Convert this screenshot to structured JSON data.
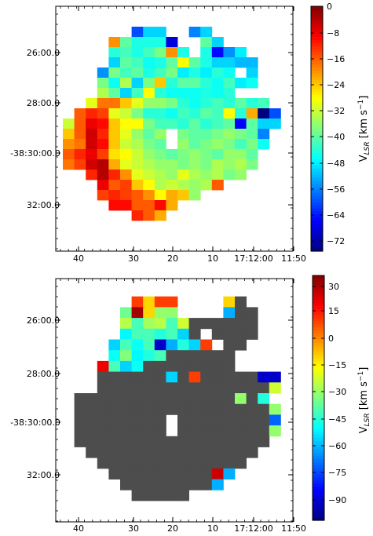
{
  "chart_data": [
    {
      "type": "heatmap",
      "title": "",
      "xlabel": "",
      "ylabel": "",
      "x_ticks": [
        "40",
        "30",
        "20",
        "10",
        "17:12:00",
        "11:50"
      ],
      "y_ticks": [
        "26:00.0",
        "28:00.0",
        "-38:30:00.0",
        "32:00.0"
      ],
      "colorbar": {
        "label": "V",
        "label_subscript": "LSR",
        "label_unit": " [km s",
        "label_exp": "−1",
        "label_close": "]",
        "ticks": [
          "0",
          "−8",
          "−16",
          "−24",
          "−32",
          "−40",
          "−48",
          "−56",
          "−64",
          "−72"
        ],
        "range": [
          -75,
          0
        ],
        "colormap": "jet"
      },
      "cells": [
        [
          null,
          null,
          null,
          null,
          null,
          null,
          null,
          null,
          null,
          null,
          null,
          null,
          null,
          null,
          null,
          null,
          null,
          null,
          null,
          null
        ],
        [
          null,
          null,
          null,
          null,
          null,
          null,
          -60,
          -50,
          -50,
          null,
          null,
          -56,
          -50,
          null,
          null,
          null,
          null,
          null,
          null,
          null
        ],
        [
          null,
          null,
          null,
          null,
          -20,
          -40,
          -45,
          -45,
          -45,
          -68,
          null,
          null,
          -40,
          -50,
          null,
          null,
          null,
          null,
          null,
          null
        ],
        [
          null,
          null,
          null,
          null,
          -44,
          -42,
          -45,
          -42,
          -38,
          -20,
          -45,
          null,
          -45,
          -65,
          -55,
          -48,
          null,
          null,
          null,
          null
        ],
        [
          null,
          null,
          null,
          null,
          -50,
          -40,
          -42,
          -46,
          -45,
          -40,
          -28,
          -40,
          -45,
          -50,
          -50,
          -52,
          -52,
          null,
          null,
          null
        ],
        [
          null,
          null,
          null,
          -55,
          -38,
          -42,
          -40,
          -45,
          -42,
          -38,
          -48,
          -45,
          -48,
          -44,
          -46,
          null,
          -50,
          null,
          null,
          null
        ],
        [
          null,
          null,
          null,
          -38,
          -46,
          -34,
          -50,
          -38,
          -24,
          -44,
          -40,
          -40,
          -44,
          -46,
          -42,
          -48,
          -46,
          null,
          null,
          null
        ],
        [
          null,
          null,
          null,
          -34,
          -40,
          -50,
          -42,
          -28,
          -44,
          -46,
          -46,
          -46,
          -45,
          -46,
          -44,
          null,
          null,
          null,
          null,
          null
        ],
        [
          null,
          null,
          -30,
          -18,
          -18,
          -24,
          -30,
          -36,
          -36,
          -38,
          -44,
          -46,
          -44,
          -42,
          -44,
          -40,
          -44,
          -42,
          null,
          null
        ],
        [
          null,
          -16,
          -12,
          -14,
          -30,
          -32,
          -38,
          -44,
          -44,
          -46,
          -42,
          -44,
          -40,
          -42,
          -28,
          -44,
          -22,
          -75,
          -60,
          null
        ],
        [
          -32,
          -16,
          -8,
          -10,
          -24,
          -28,
          -28,
          -38,
          -42,
          -42,
          -44,
          -40,
          -44,
          -42,
          -40,
          -66,
          -40,
          -50,
          -50,
          null
        ],
        [
          -24,
          -16,
          -6,
          -12,
          -24,
          -30,
          -36,
          -40,
          -36,
          null,
          -38,
          -40,
          -40,
          -38,
          -36,
          -38,
          -40,
          -56,
          null,
          null
        ],
        [
          -20,
          -18,
          -6,
          -10,
          -24,
          -32,
          -34,
          -38,
          -40,
          null,
          -36,
          -40,
          -38,
          -36,
          -38,
          -42,
          -38,
          -46,
          null,
          null
        ],
        [
          -16,
          -12,
          -8,
          -14,
          -26,
          -28,
          -32,
          -36,
          -38,
          -40,
          -38,
          -36,
          -38,
          -40,
          -36,
          -36,
          -40,
          null,
          null,
          null
        ],
        [
          -18,
          -14,
          -6,
          -4,
          -22,
          -30,
          -32,
          -34,
          -36,
          -36,
          -38,
          -36,
          -38,
          -34,
          -36,
          -34,
          -38,
          null,
          null,
          null
        ],
        [
          null,
          null,
          -12,
          -4,
          -12,
          -20,
          -30,
          -32,
          -34,
          -36,
          -30,
          -34,
          -36,
          -34,
          -38,
          -36,
          null,
          null,
          null,
          null
        ],
        [
          null,
          null,
          null,
          -8,
          -16,
          -14,
          -24,
          -28,
          -34,
          -32,
          -34,
          -36,
          -34,
          -16,
          null,
          null,
          null,
          null,
          null,
          null
        ],
        [
          null,
          null,
          null,
          -14,
          -12,
          -14,
          -16,
          -20,
          -28,
          -22,
          -24,
          -36,
          null,
          null,
          null,
          null,
          null,
          null,
          null,
          null
        ],
        [
          null,
          null,
          null,
          null,
          -10,
          -10,
          -16,
          -16,
          -10,
          -22,
          null,
          null,
          null,
          null,
          null,
          null,
          null,
          null,
          null,
          null
        ],
        [
          null,
          null,
          null,
          null,
          null,
          null,
          -12,
          -16,
          -22,
          null,
          null,
          null,
          null,
          null,
          null,
          null,
          null,
          null,
          null,
          null
        ]
      ]
    },
    {
      "type": "heatmap",
      "title": "",
      "xlabel": "",
      "ylabel": "",
      "x_ticks": [
        "40",
        "30",
        "20",
        "10",
        "17:12:00",
        "11:50"
      ],
      "y_ticks": [
        "26:00.0",
        "28:00.0",
        "-38:30:00.0",
        "32:00.0"
      ],
      "colorbar": {
        "label": "V",
        "label_subscript": "LSR",
        "label_unit": " [km s",
        "label_exp": "−1",
        "label_close": "]",
        "ticks": [
          "30",
          "15",
          "0",
          "−15",
          "−30",
          "−45",
          "−60",
          "−75",
          "−90"
        ],
        "range": [
          -100,
          35
        ],
        "colormap": "jet"
      },
      "masked_color": "#4d4d4d",
      "cells": [
        [
          null,
          null,
          null,
          null,
          null,
          null,
          null,
          null,
          null,
          null,
          null,
          null,
          null,
          null,
          null,
          null,
          null,
          null,
          null,
          null
        ],
        [
          null,
          null,
          null,
          null,
          null,
          null,
          10,
          -10,
          10,
          10,
          null,
          null,
          null,
          null,
          -10,
          "M",
          null,
          null,
          null,
          null
        ],
        [
          null,
          null,
          null,
          null,
          null,
          -35,
          30,
          -10,
          -30,
          -30,
          null,
          null,
          null,
          null,
          -60,
          "M",
          "M",
          null,
          null,
          null
        ],
        [
          null,
          null,
          null,
          null,
          null,
          -25,
          -40,
          -28,
          -25,
          -40,
          -22,
          "M",
          "M",
          "M",
          "M",
          "M",
          "M",
          null,
          null,
          null
        ],
        [
          null,
          null,
          null,
          null,
          null,
          -50,
          -40,
          -40,
          -45,
          -40,
          -55,
          "M",
          null,
          "M",
          "M",
          "M",
          "M",
          null,
          null,
          null
        ],
        [
          null,
          null,
          null,
          null,
          -55,
          -40,
          -48,
          -40,
          -90,
          -60,
          -45,
          -55,
          10,
          null,
          "M",
          "M",
          null,
          null,
          null,
          null
        ],
        [
          null,
          null,
          null,
          null,
          -48,
          -32,
          -50,
          -45,
          -40,
          "M",
          "M",
          "M",
          "M",
          "M",
          "M",
          null,
          null,
          null,
          null,
          null
        ],
        [
          null,
          null,
          null,
          20,
          -40,
          -55,
          -48,
          "M",
          "M",
          "M",
          "M",
          "M",
          "M",
          "M",
          "M",
          null,
          null,
          null,
          null,
          null
        ],
        [
          null,
          null,
          null,
          "M",
          "M",
          "M",
          "M",
          "M",
          "M",
          -55,
          "M",
          10,
          "M",
          "M",
          "M",
          "M",
          "M",
          -90,
          -90,
          null
        ],
        [
          null,
          null,
          null,
          "M",
          "M",
          "M",
          "M",
          "M",
          "M",
          "M",
          "M",
          "M",
          "M",
          "M",
          "M",
          "M",
          "M",
          "M",
          -22,
          null
        ],
        [
          null,
          "M",
          "M",
          "M",
          "M",
          "M",
          "M",
          "M",
          "M",
          "M",
          "M",
          "M",
          "M",
          "M",
          "M",
          -30,
          "M",
          -45,
          null,
          null
        ],
        [
          null,
          "M",
          "M",
          "M",
          "M",
          "M",
          "M",
          "M",
          "M",
          "M",
          "M",
          "M",
          "M",
          "M",
          "M",
          "M",
          "M",
          "M",
          -30,
          null
        ],
        [
          null,
          "M",
          "M",
          "M",
          "M",
          "M",
          "M",
          "M",
          "M",
          null,
          "M",
          "M",
          "M",
          "M",
          "M",
          "M",
          "M",
          "M",
          -70,
          null
        ],
        [
          null,
          "M",
          "M",
          "M",
          "M",
          "M",
          "M",
          "M",
          "M",
          null,
          "M",
          "M",
          "M",
          "M",
          "M",
          "M",
          "M",
          "M",
          -30,
          null
        ],
        [
          null,
          "M",
          "M",
          "M",
          "M",
          "M",
          "M",
          "M",
          "M",
          "M",
          "M",
          "M",
          "M",
          "M",
          "M",
          "M",
          "M",
          "M",
          null,
          null
        ],
        [
          null,
          null,
          "M",
          "M",
          "M",
          "M",
          "M",
          "M",
          "M",
          "M",
          "M",
          "M",
          "M",
          "M",
          "M",
          "M",
          "M",
          null,
          null,
          null
        ],
        [
          null,
          null,
          null,
          "M",
          "M",
          "M",
          "M",
          "M",
          "M",
          "M",
          "M",
          "M",
          "M",
          "M",
          "M",
          "M",
          null,
          null,
          null,
          null
        ],
        [
          null,
          null,
          null,
          null,
          "M",
          "M",
          "M",
          "M",
          "M",
          "M",
          "M",
          "M",
          "M",
          25,
          -60,
          null,
          null,
          null,
          null,
          null
        ],
        [
          null,
          null,
          null,
          null,
          null,
          "M",
          "M",
          "M",
          "M",
          "M",
          "M",
          "M",
          "M",
          -60,
          null,
          null,
          null,
          null,
          null,
          null
        ],
        [
          null,
          null,
          null,
          null,
          null,
          null,
          "M",
          "M",
          "M",
          "M",
          "M",
          null,
          null,
          null,
          null,
          null,
          null,
          null,
          null,
          null
        ]
      ]
    }
  ]
}
